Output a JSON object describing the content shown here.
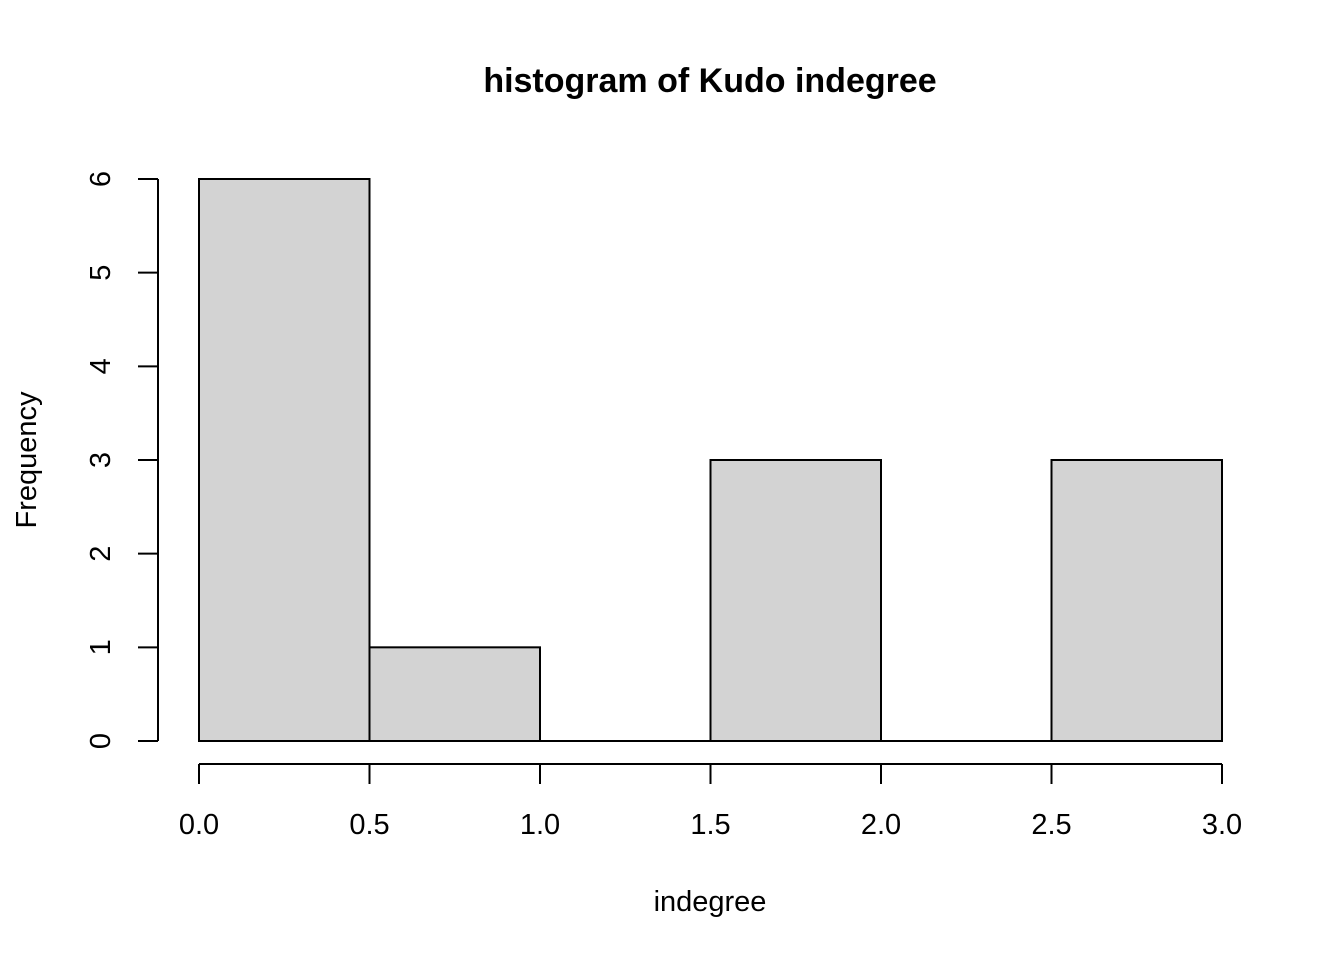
{
  "chart_data": {
    "type": "bar",
    "title": "histogram of Kudo indegree",
    "xlabel": "indegree",
    "ylabel": "Frequency",
    "bins": [
      {
        "start": 0.0,
        "end": 0.5,
        "count": 6
      },
      {
        "start": 0.5,
        "end": 1.0,
        "count": 1
      },
      {
        "start": 1.0,
        "end": 1.5,
        "count": 0
      },
      {
        "start": 1.5,
        "end": 2.0,
        "count": 3
      },
      {
        "start": 2.0,
        "end": 2.5,
        "count": 0
      },
      {
        "start": 2.5,
        "end": 3.0,
        "count": 3
      }
    ],
    "xlim": [
      0,
      3
    ],
    "ylim": [
      0,
      6
    ],
    "xticks": [
      "0.0",
      "0.5",
      "1.0",
      "1.5",
      "2.0",
      "2.5",
      "3.0"
    ],
    "yticks": [
      "0",
      "1",
      "2",
      "3",
      "4",
      "5",
      "6"
    ],
    "bar_fill": "#d3d3d3",
    "bar_stroke": "#000000",
    "grid": false,
    "legend": "none"
  }
}
